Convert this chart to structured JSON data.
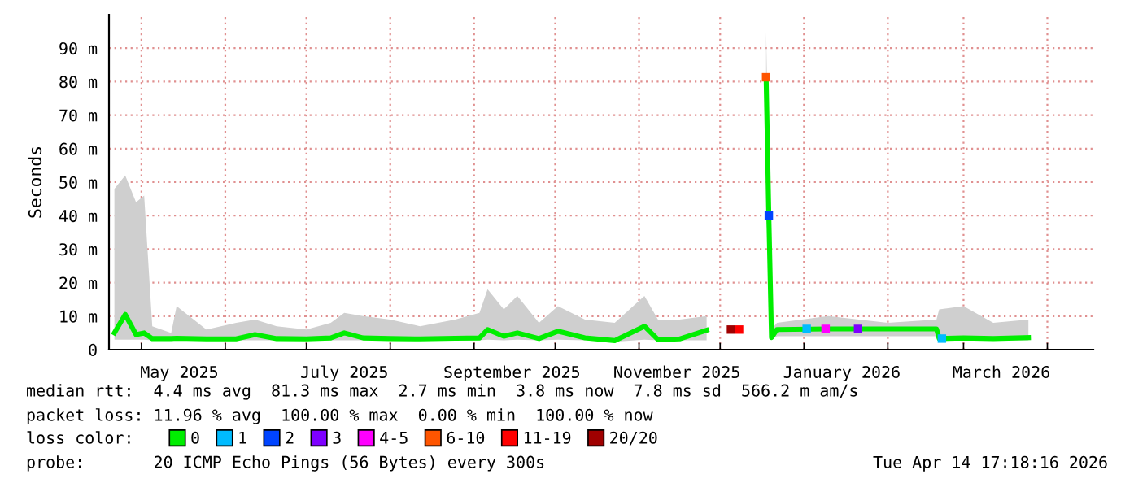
{
  "chart_data": {
    "type": "line",
    "ylabel": "Seconds",
    "x": [
      "2025-04-21",
      "2025-04-25",
      "2025-04-29",
      "2025-05-02",
      "2025-05-05",
      "2025-05-12",
      "2025-05-14",
      "2025-05-25",
      "2025-06-05",
      "2025-06-12",
      "2025-06-20",
      "2025-07-01",
      "2025-07-10",
      "2025-07-15",
      "2025-07-22",
      "2025-08-01",
      "2025-08-12",
      "2025-08-25",
      "2025-09-03",
      "2025-09-06",
      "2025-09-12",
      "2025-09-17",
      "2025-09-25",
      "2025-10-02",
      "2025-10-12",
      "2025-10-23",
      "2025-11-03",
      "2025-11-08",
      "2025-11-16",
      "2025-11-26",
      "2025-12-01",
      "2025-12-18",
      "2025-12-19",
      "2025-12-20",
      "2025-12-22",
      "2026-01-10",
      "2026-02-01",
      "2026-02-19",
      "2026-02-20",
      "2026-03-01",
      "2026-03-12",
      "2026-03-25"
    ],
    "series": [
      {
        "name": "0",
        "color": "#00ee00",
        "values": [
          5,
          10.5,
          4.5,
          5,
          3.3,
          3.3,
          3.4,
          3.2,
          3.2,
          4.5,
          3.3,
          3.2,
          3.5,
          5,
          3.5,
          3.3,
          3.2,
          3.4,
          3.5,
          6,
          4,
          5,
          3.3,
          5.5,
          3.5,
          2.7,
          7,
          3,
          3.2,
          5.8,
          null,
          81.3,
          40,
          3.6,
          6,
          6.2,
          6.2,
          6.2,
          3.3,
          3.5,
          3.3,
          3.6
        ],
        "lower": [
          3,
          3,
          3,
          3,
          2.8,
          2.8,
          2.8,
          2.8,
          2.8,
          2.8,
          2.8,
          2.8,
          2.8,
          2.8,
          2.8,
          2.8,
          2.8,
          2.8,
          2.8,
          3,
          2.8,
          3,
          2.8,
          3,
          2.8,
          2.4,
          3,
          2.8,
          2.8,
          2.8,
          null,
          40,
          30,
          3,
          4,
          4,
          4,
          4,
          2.8,
          2.8,
          2.8,
          2.8
        ],
        "upper": [
          48,
          52,
          44,
          46,
          7,
          5,
          13,
          6,
          8,
          9,
          7,
          6,
          8,
          11,
          10,
          9,
          7,
          9,
          11,
          18,
          12,
          16,
          8,
          13,
          9,
          8,
          16,
          9,
          9,
          10,
          null,
          95,
          50,
          6,
          8,
          10,
          8,
          9,
          12,
          13,
          8,
          9
        ]
      },
      {
        "name": "1",
        "type": "scatter",
        "marker": "square",
        "color": "#00bbff",
        "x": [
          "2026-01-02",
          "2026-02-21"
        ],
        "values": [
          6.2,
          3.3
        ]
      },
      {
        "name": "2",
        "type": "scatter",
        "marker": "square",
        "color": "#0044ff",
        "x": [
          "2025-12-19"
        ],
        "values": [
          40
        ]
      },
      {
        "name": "3",
        "type": "scatter",
        "marker": "square",
        "color": "#7e00ff",
        "x": [
          "2026-01-21"
        ],
        "values": [
          6.2
        ]
      },
      {
        "name": "4-5",
        "type": "scatter",
        "marker": "square",
        "color": "#ff00ff",
        "x": [
          "2026-01-09"
        ],
        "values": [
          6.2
        ]
      },
      {
        "name": "6-10",
        "type": "scatter",
        "marker": "square",
        "color": "#ff5500",
        "x": [
          "2025-12-18"
        ],
        "values": [
          81.3
        ]
      },
      {
        "name": "11-19",
        "type": "scatter",
        "marker": "square",
        "color": "#ff0000",
        "x": [
          "2025-12-08"
        ],
        "values": [
          6
        ]
      },
      {
        "name": "20/20",
        "type": "scatter",
        "marker": "square",
        "color": "#a00000",
        "x": [
          "2025-12-05"
        ],
        "values": [
          6
        ]
      }
    ],
    "xlim": [
      "2025-04-19",
      "2026-04-18"
    ],
    "xticks": [
      {
        "value": "2025-05-01",
        "label": null
      },
      {
        "value": "2025-05-15",
        "label": "May 2025"
      },
      {
        "value": "2025-06-01",
        "label": null
      },
      {
        "value": "2025-07-01",
        "label": null
      },
      {
        "value": "2025-07-15",
        "label": "July 2025"
      },
      {
        "value": "2025-08-01",
        "label": null
      },
      {
        "value": "2025-09-01",
        "label": null
      },
      {
        "value": "2025-09-15",
        "label": "September 2025"
      },
      {
        "value": "2025-10-01",
        "label": null
      },
      {
        "value": "2025-11-01",
        "label": null
      },
      {
        "value": "2025-11-15",
        "label": "November 2025"
      },
      {
        "value": "2025-12-01",
        "label": null
      },
      {
        "value": "2026-01-01",
        "label": null
      },
      {
        "value": "2026-01-15",
        "label": "January 2026"
      },
      {
        "value": "2026-02-01",
        "label": null
      },
      {
        "value": "2026-03-01",
        "label": null
      },
      {
        "value": "2026-03-15",
        "label": "March 2026"
      },
      {
        "value": "2026-04-01",
        "label": null
      }
    ],
    "ylim": [
      0,
      100
    ],
    "yticks": [
      0,
      {
        "value": 10,
        "label": "10 m"
      },
      {
        "value": 20,
        "label": "20 m"
      },
      {
        "value": 30,
        "label": "30 m"
      },
      {
        "value": 40,
        "label": "40 m"
      },
      {
        "value": 50,
        "label": "50 m"
      },
      {
        "value": 60,
        "label": "60 m"
      },
      {
        "value": 70,
        "label": "70 m"
      },
      {
        "value": 80,
        "label": "80 m"
      },
      {
        "value": 90,
        "label": "90 m"
      }
    ],
    "grid": true,
    "legend": "bottom",
    "legend_title": "loss color:",
    "line_style": "solid",
    "annotations": [
      "median rtt:  4.4 ms avg  81.3 ms max  2.7 ms min  3.8 ms now  7.8 ms sd  566.2 m am/s",
      "packet loss: 11.96 % avg  100.00 % max  0.00 % min  100.00 % now",
      "probe:       20 ICMP Echo Pings (56 Bytes) every 300s",
      "Tue Apr 14 17:18:16 2026"
    ]
  }
}
